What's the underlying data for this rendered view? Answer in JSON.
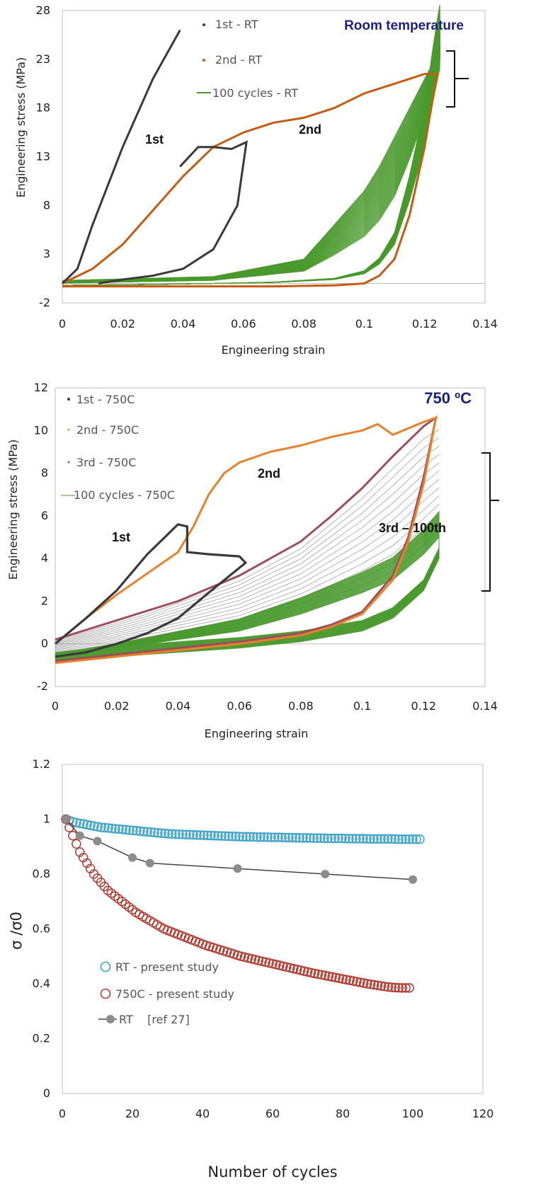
{
  "colors": {
    "first": "#3a3a3a",
    "second_rt": "#c75b12",
    "second_750": "#e8822a",
    "third_750": "#9c4f5a",
    "cycles": "#4a9a2e",
    "cycles_light": "#8a8a8a",
    "rt_present": "#3ba3c8",
    "hot_present": "#b03a2e",
    "ref": "#444444",
    "ref_marker": "#8c8c8c",
    "title": "#1a237e"
  },
  "chart_data": [
    {
      "type": "line",
      "title": "Room temperature",
      "xlabel": "Engineering strain",
      "ylabel": "Engineering stress (MPa)",
      "xlim": [
        0,
        0.14
      ],
      "ylim": [
        -2,
        28
      ],
      "x_ticks": [
        "0",
        "0.02",
        "0.04",
        "0.06",
        "0.08",
        "0.1",
        "0.12",
        "0.14"
      ],
      "y_ticks": [
        "-2",
        "3",
        "8",
        "13",
        "18",
        "23",
        "28"
      ],
      "legend": [
        "1st - RT",
        "2nd - RT",
        "100 cycles - RT"
      ],
      "annotations": [
        "1st",
        "2nd"
      ],
      "series": [
        {
          "name": "1st - RT",
          "x": [
            0,
            0.005,
            0.01,
            0.02,
            0.03,
            0.039
          ],
          "y": [
            0,
            1.5,
            6,
            14,
            21,
            26
          ]
        },
        {
          "name": "1st - RT unload",
          "x": [
            0.039,
            0.045,
            0.05,
            0.056,
            0.061,
            0.058,
            0.05,
            0.04,
            0.03,
            0.02,
            0.012
          ],
          "y": [
            12,
            14,
            14,
            13.8,
            14.5,
            8,
            3.5,
            1.5,
            0.8,
            0.4,
            0
          ]
        },
        {
          "name": "2nd - RT",
          "x": [
            0,
            0.01,
            0.02,
            0.03,
            0.04,
            0.05,
            0.06,
            0.07,
            0.08,
            0.09,
            0.1,
            0.11,
            0.12,
            0.124
          ],
          "y": [
            0,
            1.5,
            4,
            7.5,
            11,
            14,
            15.5,
            16.5,
            17,
            18,
            19.5,
            20.5,
            21.5,
            21.5
          ]
        },
        {
          "name": "2nd - RT unload",
          "x": [
            0.124,
            0.12,
            0.115,
            0.11,
            0.105,
            0.1,
            0.09,
            0.07,
            0.05,
            0.03,
            0
          ],
          "y": [
            21.5,
            14,
            7,
            2.5,
            0.8,
            0,
            -0.2,
            -0.3,
            -0.3,
            -0.3,
            -0.3
          ]
        },
        {
          "name": "100 cycles - RT (upper)",
          "x": [
            0,
            0.05,
            0.08,
            0.09,
            0.1,
            0.105,
            0.11,
            0.115,
            0.12,
            0.125
          ],
          "y": [
            0.3,
            0.7,
            2.5,
            6,
            9.5,
            12,
            15,
            18,
            21,
            24
          ]
        },
        {
          "name": "100 cycles - RT (lower)",
          "x": [
            0.125,
            0.123,
            0.12,
            0.115,
            0.11,
            0.105,
            0.1,
            0.09,
            0.07,
            0.05,
            0.03,
            0
          ],
          "y": [
            22,
            19,
            14,
            8.5,
            4,
            2,
            1,
            0.4,
            0.1,
            0,
            -0.1,
            -0.2
          ]
        }
      ]
    },
    {
      "type": "line",
      "title": "750 ºC",
      "xlabel": "Engineering strain",
      "ylabel": "Engineering stress (MPa)",
      "xlim": [
        0,
        0.14
      ],
      "ylim": [
        -2,
        12
      ],
      "x_ticks": [
        "0",
        "0.02",
        "0.04",
        "0.06",
        "0.08",
        "0.1",
        "0.12",
        "0.14"
      ],
      "y_ticks": [
        "-2",
        "0",
        "2",
        "4",
        "6",
        "8",
        "10",
        "12"
      ],
      "legend": [
        "1st - 750C",
        "2nd - 750C",
        "3rd - 750C",
        "100 cycles - 750C"
      ],
      "annotations": [
        "1st",
        "2nd"
      ],
      "series": [
        {
          "name": "1st - 750C",
          "x": [
            0,
            0.01,
            0.02,
            0.03,
            0.04,
            0.043,
            0.043,
            0.05,
            0.06,
            0.062,
            0.05,
            0.04,
            0.03,
            0.02,
            0.01,
            0
          ],
          "y": [
            0,
            1.2,
            2.5,
            4.2,
            5.6,
            5.5,
            4.3,
            4.2,
            4.1,
            3.8,
            2.4,
            1.2,
            0.5,
            0,
            -0.4,
            -0.6
          ]
        },
        {
          "name": "2nd - 750C",
          "x": [
            0,
            0.01,
            0.02,
            0.03,
            0.04,
            0.045,
            0.05,
            0.055,
            0.06,
            0.07,
            0.08,
            0.09,
            0.1,
            0.105,
            0.11,
            0.12,
            0.124
          ],
          "y": [
            0,
            1.2,
            2.3,
            3.3,
            4.3,
            5.5,
            7,
            8,
            8.5,
            9,
            9.3,
            9.7,
            10,
            10.3,
            9.8,
            10.4,
            10.6
          ]
        },
        {
          "name": "2nd - 750C unload",
          "x": [
            0.124,
            0.12,
            0.115,
            0.11,
            0.1,
            0.09,
            0.08,
            0.06,
            0.04,
            0.02,
            0
          ],
          "y": [
            10.6,
            7.5,
            4.8,
            3,
            1.4,
            0.8,
            0.4,
            0,
            -0.3,
            -0.6,
            -0.9
          ]
        },
        {
          "name": "3rd - 750C",
          "x": [
            0,
            0.02,
            0.04,
            0.06,
            0.08,
            0.09,
            0.1,
            0.11,
            0.12,
            0.124
          ],
          "y": [
            0.2,
            1.1,
            2,
            3.2,
            4.8,
            6,
            7.3,
            8.8,
            10.2,
            10.6
          ]
        },
        {
          "name": "3rd - 750C unload",
          "x": [
            0.124,
            0.12,
            0.115,
            0.11,
            0.1,
            0.09,
            0.08,
            0.06,
            0.04,
            0.02,
            0
          ],
          "y": [
            10.6,
            7.8,
            5,
            3.2,
            1.5,
            0.9,
            0.5,
            0.1,
            -0.2,
            -0.5,
            -0.8
          ]
        },
        {
          "name": "100 cycles - 750C (upper)",
          "x": [
            0,
            0.03,
            0.06,
            0.08,
            0.1,
            0.11,
            0.12,
            0.125
          ],
          "y": [
            -0.5,
            0,
            0.6,
            1.4,
            2.4,
            3,
            4.2,
            5
          ]
        },
        {
          "name": "100 cycles - 750C (lower)",
          "x": [
            0.125,
            0.12,
            0.11,
            0.1,
            0.08,
            0.06,
            0.04,
            0.02,
            0
          ],
          "y": [
            4,
            2.5,
            1.2,
            0.6,
            0.1,
            -0.2,
            -0.4,
            -0.6,
            -0.9
          ]
        }
      ],
      "ann_cycles": "3rd – 100th"
    },
    {
      "type": "scatter",
      "xlabel": "Number of cycles",
      "ylabel": "σ /σ0",
      "xlim": [
        0,
        120
      ],
      "ylim": [
        0,
        1.2
      ],
      "x_ticks": [
        "0",
        "20",
        "40",
        "60",
        "80",
        "100",
        "120"
      ],
      "y_ticks": [
        "0",
        "0.2",
        "0.4",
        "0.6",
        "0.8",
        "1",
        "1.2"
      ],
      "legend": [
        "RT - present study",
        "750C - present study",
        "RT    [ref 27]"
      ],
      "series": [
        {
          "name": "RT - present study",
          "x_start": 1,
          "x_end": 102,
          "y": [
            1,
            0.99,
            0.985,
            0.98,
            0.975,
            0.97,
            0.968,
            0.965,
            0.963,
            0.96,
            0.958,
            0.955,
            0.953,
            0.95,
            0.948,
            0.946,
            0.945,
            0.944,
            0.943,
            0.942,
            0.941,
            0.94,
            0.939,
            0.938,
            0.937,
            0.936,
            0.936,
            0.935,
            0.935,
            0.934,
            0.934,
            0.933,
            0.933,
            0.932,
            0.932,
            0.931,
            0.931,
            0.93,
            0.93,
            0.93,
            0.929,
            0.929,
            0.929,
            0.928,
            0.928,
            0.928,
            0.928,
            0.927,
            0.927,
            0.927,
            0.927
          ]
        },
        {
          "name": "750C - present study",
          "x_start": 1,
          "x_end": 99,
          "y": [
            1,
            0.94,
            0.88,
            0.84,
            0.8,
            0.77,
            0.74,
            0.72,
            0.7,
            0.68,
            0.66,
            0.645,
            0.63,
            0.615,
            0.6,
            0.59,
            0.58,
            0.57,
            0.56,
            0.55,
            0.54,
            0.532,
            0.524,
            0.516,
            0.508,
            0.5,
            0.494,
            0.488,
            0.482,
            0.476,
            0.47,
            0.464,
            0.458,
            0.452,
            0.446,
            0.44,
            0.435,
            0.43,
            0.425,
            0.42,
            0.415,
            0.41,
            0.405,
            0.4,
            0.396,
            0.392,
            0.388,
            0.386,
            0.385,
            0.385
          ]
        },
        {
          "name": "RT    [ref 27]",
          "x": [
            1,
            5,
            10,
            20,
            25,
            50,
            75,
            100
          ],
          "y": [
            1,
            0.94,
            0.92,
            0.86,
            0.84,
            0.82,
            0.8,
            0.78
          ]
        }
      ]
    }
  ]
}
